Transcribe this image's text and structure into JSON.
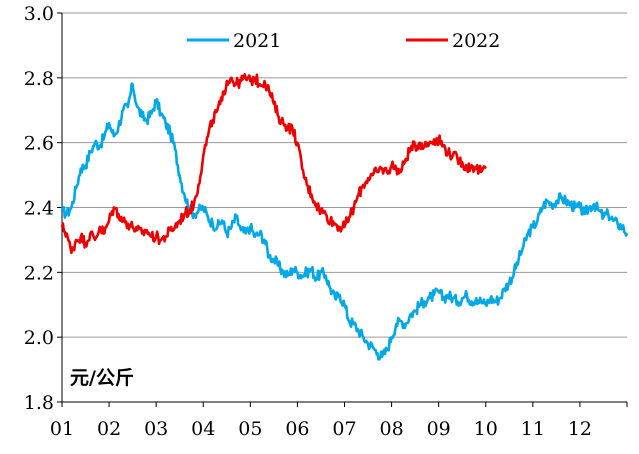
{
  "chart_data": {
    "type": "line",
    "title": "",
    "xlabel": "",
    "ylabel": "",
    "unit_label": "元/公斤",
    "ylim": [
      1.8,
      3.0
    ],
    "yticks": [
      "1.8",
      "2.0",
      "2.2",
      "2.4",
      "2.6",
      "2.8",
      "3.0"
    ],
    "xlim": [
      1,
      13
    ],
    "xticks": [
      "01",
      "02",
      "03",
      "04",
      "05",
      "06",
      "07",
      "08",
      "09",
      "10",
      "11",
      "12"
    ],
    "grid": "horizontal",
    "legend_position": "top",
    "series": [
      {
        "name": "2021",
        "color": "#00a8e8",
        "points": [
          [
            1.0,
            2.39
          ],
          [
            1.1,
            2.38
          ],
          [
            1.2,
            2.4
          ],
          [
            1.3,
            2.46
          ],
          [
            1.4,
            2.52
          ],
          [
            1.5,
            2.53
          ],
          [
            1.6,
            2.57
          ],
          [
            1.7,
            2.6
          ],
          [
            1.8,
            2.59
          ],
          [
            1.9,
            2.62
          ],
          [
            2.0,
            2.66
          ],
          [
            2.1,
            2.62
          ],
          [
            2.2,
            2.65
          ],
          [
            2.3,
            2.7
          ],
          [
            2.4,
            2.71
          ],
          [
            2.5,
            2.78
          ],
          [
            2.6,
            2.71
          ],
          [
            2.7,
            2.68
          ],
          [
            2.8,
            2.67
          ],
          [
            2.9,
            2.69
          ],
          [
            3.0,
            2.73
          ],
          [
            3.1,
            2.69
          ],
          [
            3.2,
            2.66
          ],
          [
            3.3,
            2.63
          ],
          [
            3.4,
            2.58
          ],
          [
            3.5,
            2.5
          ],
          [
            3.6,
            2.44
          ],
          [
            3.7,
            2.4
          ],
          [
            3.8,
            2.38
          ],
          [
            3.9,
            2.39
          ],
          [
            4.0,
            2.4
          ],
          [
            4.1,
            2.37
          ],
          [
            4.2,
            2.35
          ],
          [
            4.3,
            2.34
          ],
          [
            4.4,
            2.36
          ],
          [
            4.5,
            2.32
          ],
          [
            4.6,
            2.34
          ],
          [
            4.7,
            2.37
          ],
          [
            4.8,
            2.33
          ],
          [
            4.9,
            2.32
          ],
          [
            5.0,
            2.34
          ],
          [
            5.1,
            2.31
          ],
          [
            5.2,
            2.32
          ],
          [
            5.3,
            2.3
          ],
          [
            5.4,
            2.25
          ],
          [
            5.5,
            2.24
          ],
          [
            5.6,
            2.22
          ],
          [
            5.7,
            2.2
          ],
          [
            5.8,
            2.19
          ],
          [
            5.9,
            2.21
          ],
          [
            6.0,
            2.2
          ],
          [
            6.1,
            2.19
          ],
          [
            6.2,
            2.2
          ],
          [
            6.3,
            2.21
          ],
          [
            6.4,
            2.18
          ],
          [
            6.5,
            2.2
          ],
          [
            6.6,
            2.19
          ],
          [
            6.7,
            2.15
          ],
          [
            6.8,
            2.12
          ],
          [
            6.9,
            2.13
          ],
          [
            7.0,
            2.1
          ],
          [
            7.1,
            2.05
          ],
          [
            7.2,
            2.04
          ],
          [
            7.3,
            2.02
          ],
          [
            7.4,
            2.0
          ],
          [
            7.5,
            1.98
          ],
          [
            7.6,
            1.97
          ],
          [
            7.7,
            1.95
          ],
          [
            7.8,
            1.94
          ],
          [
            7.9,
            1.96
          ],
          [
            8.0,
            2.0
          ],
          [
            8.1,
            2.04
          ],
          [
            8.2,
            2.05
          ],
          [
            8.3,
            2.04
          ],
          [
            8.4,
            2.07
          ],
          [
            8.5,
            2.08
          ],
          [
            8.6,
            2.1
          ],
          [
            8.7,
            2.11
          ],
          [
            8.8,
            2.12
          ],
          [
            8.9,
            2.13
          ],
          [
            9.0,
            2.14
          ],
          [
            9.1,
            2.12
          ],
          [
            9.2,
            2.13
          ],
          [
            9.3,
            2.12
          ],
          [
            9.4,
            2.11
          ],
          [
            9.5,
            2.12
          ],
          [
            9.6,
            2.13
          ],
          [
            9.7,
            2.11
          ],
          [
            9.8,
            2.12
          ],
          [
            9.9,
            2.11
          ],
          [
            10.0,
            2.1
          ],
          [
            10.1,
            2.12
          ],
          [
            10.2,
            2.11
          ],
          [
            10.3,
            2.12
          ],
          [
            10.4,
            2.15
          ],
          [
            10.5,
            2.17
          ],
          [
            10.6,
            2.2
          ],
          [
            10.7,
            2.24
          ],
          [
            10.8,
            2.28
          ],
          [
            10.9,
            2.32
          ],
          [
            11.0,
            2.34
          ],
          [
            11.1,
            2.36
          ],
          [
            11.2,
            2.4
          ],
          [
            11.3,
            2.42
          ],
          [
            11.4,
            2.41
          ],
          [
            11.5,
            2.42
          ],
          [
            11.6,
            2.43
          ],
          [
            11.7,
            2.42
          ],
          [
            11.8,
            2.41
          ],
          [
            11.9,
            2.4
          ],
          [
            12.0,
            2.4
          ],
          [
            12.1,
            2.38
          ],
          [
            12.2,
            2.4
          ],
          [
            12.3,
            2.41
          ],
          [
            12.4,
            2.39
          ],
          [
            12.5,
            2.37
          ],
          [
            12.6,
            2.38
          ],
          [
            12.7,
            2.36
          ],
          [
            12.8,
            2.35
          ],
          [
            12.9,
            2.34
          ],
          [
            13.0,
            2.32
          ]
        ]
      },
      {
        "name": "2022",
        "color": "#ee0000",
        "points": [
          [
            1.0,
            2.34
          ],
          [
            1.1,
            2.32
          ],
          [
            1.2,
            2.26
          ],
          [
            1.3,
            2.3
          ],
          [
            1.4,
            2.31
          ],
          [
            1.5,
            2.29
          ],
          [
            1.6,
            2.32
          ],
          [
            1.7,
            2.3
          ],
          [
            1.8,
            2.34
          ],
          [
            1.9,
            2.32
          ],
          [
            2.0,
            2.36
          ],
          [
            2.1,
            2.4
          ],
          [
            2.2,
            2.38
          ],
          [
            2.3,
            2.36
          ],
          [
            2.4,
            2.35
          ],
          [
            2.5,
            2.34
          ],
          [
            2.6,
            2.33
          ],
          [
            2.7,
            2.32
          ],
          [
            2.8,
            2.33
          ],
          [
            2.9,
            2.31
          ],
          [
            3.0,
            2.31
          ],
          [
            3.1,
            2.3
          ],
          [
            3.2,
            2.31
          ],
          [
            3.3,
            2.33
          ],
          [
            3.4,
            2.34
          ],
          [
            3.5,
            2.36
          ],
          [
            3.6,
            2.38
          ],
          [
            3.7,
            2.39
          ],
          [
            3.8,
            2.41
          ],
          [
            3.9,
            2.47
          ],
          [
            4.0,
            2.56
          ],
          [
            4.1,
            2.62
          ],
          [
            4.2,
            2.67
          ],
          [
            4.3,
            2.7
          ],
          [
            4.4,
            2.73
          ],
          [
            4.5,
            2.79
          ],
          [
            4.6,
            2.8
          ],
          [
            4.7,
            2.78
          ],
          [
            4.8,
            2.79
          ],
          [
            4.9,
            2.8
          ],
          [
            5.0,
            2.79
          ],
          [
            5.1,
            2.8
          ],
          [
            5.2,
            2.78
          ],
          [
            5.3,
            2.79
          ],
          [
            5.4,
            2.76
          ],
          [
            5.5,
            2.72
          ],
          [
            5.6,
            2.68
          ],
          [
            5.7,
            2.66
          ],
          [
            5.8,
            2.65
          ],
          [
            5.9,
            2.64
          ],
          [
            6.0,
            2.6
          ],
          [
            6.1,
            2.52
          ],
          [
            6.2,
            2.47
          ],
          [
            6.3,
            2.44
          ],
          [
            6.4,
            2.41
          ],
          [
            6.5,
            2.39
          ],
          [
            6.6,
            2.38
          ],
          [
            6.7,
            2.36
          ],
          [
            6.8,
            2.35
          ],
          [
            6.9,
            2.34
          ],
          [
            7.0,
            2.34
          ],
          [
            7.1,
            2.37
          ],
          [
            7.2,
            2.4
          ],
          [
            7.3,
            2.44
          ],
          [
            7.4,
            2.47
          ],
          [
            7.5,
            2.49
          ],
          [
            7.6,
            2.5
          ],
          [
            7.7,
            2.51
          ],
          [
            7.8,
            2.52
          ],
          [
            7.9,
            2.51
          ],
          [
            8.0,
            2.53
          ],
          [
            8.1,
            2.52
          ],
          [
            8.2,
            2.51
          ],
          [
            8.3,
            2.55
          ],
          [
            8.4,
            2.58
          ],
          [
            8.5,
            2.59
          ],
          [
            8.6,
            2.6
          ],
          [
            8.7,
            2.59
          ],
          [
            8.8,
            2.6
          ],
          [
            8.9,
            2.61
          ],
          [
            9.0,
            2.61
          ],
          [
            9.1,
            2.59
          ],
          [
            9.2,
            2.57
          ],
          [
            9.3,
            2.56
          ],
          [
            9.4,
            2.55
          ],
          [
            9.5,
            2.54
          ],
          [
            9.6,
            2.52
          ],
          [
            9.7,
            2.53
          ],
          [
            9.8,
            2.52
          ],
          [
            9.9,
            2.51
          ],
          [
            10.0,
            2.52
          ]
        ]
      }
    ]
  }
}
